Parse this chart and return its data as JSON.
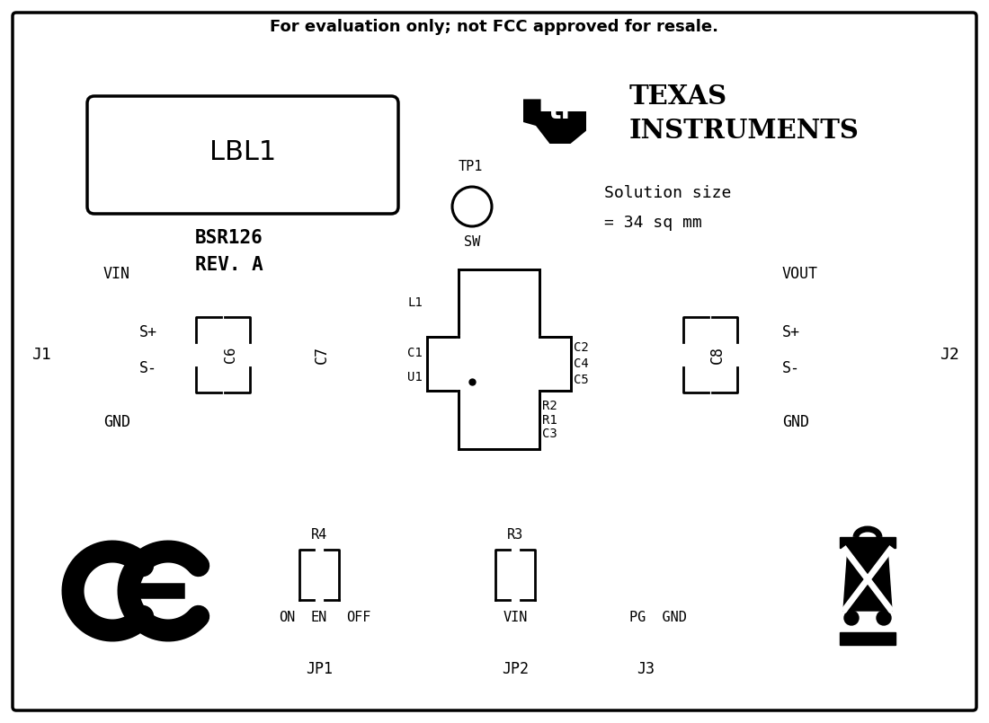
{
  "title": "For evaluation only; not FCC approved for resale.",
  "background_color": "#ffffff",
  "border_color": "#000000",
  "text_color": "#000000",
  "label_box": "LBL1",
  "bsr_line1": "BSR126",
  "bsr_line2": "REV. A",
  "ti_line1": "TEXAS",
  "ti_line2": "INSTRUMENTS",
  "solution_line1": "Solution size",
  "solution_line2": "= 34 sq mm",
  "tp1_label": "TP1",
  "sw_label": "SW",
  "j1_label": "J1",
  "j2_label": "J2",
  "vin_label": "VIN",
  "vout_label": "VOUT",
  "sp_left": "S+",
  "sm_left": "S-",
  "gnd_left": "GND",
  "sp_right": "S+",
  "sm_right": "S-",
  "gnd_right": "GND",
  "c6_label": "C6",
  "c7_label": "C7",
  "c8_label": "C8",
  "l1": "L1",
  "c1": "C1",
  "u1": "U1",
  "c2": "C2",
  "c4": "C4",
  "c5": "C5",
  "r2": "R2",
  "r1": "R1",
  "c3": "C3",
  "r4": "R4",
  "on": "ON",
  "en": "EN",
  "off": "OFF",
  "jp1": "JP1",
  "r3": "R3",
  "vin2": "VIN",
  "jp2": "JP2",
  "pg": "PG",
  "gnd2": "GND",
  "j3": "J3"
}
